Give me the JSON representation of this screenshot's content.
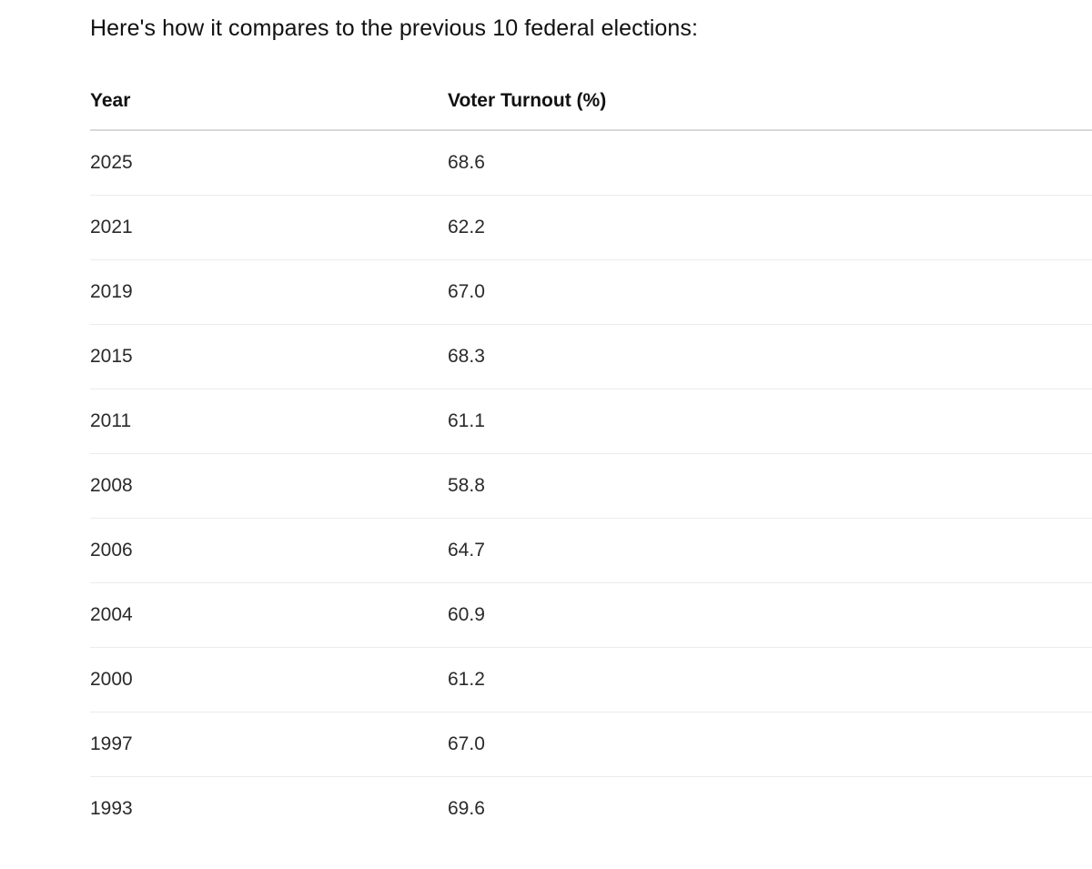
{
  "intro_text": "Here's how it compares to the previous 10 federal elections:",
  "table": {
    "headers": [
      "Year",
      "Voter Turnout (%)"
    ],
    "rows": [
      [
        "2025",
        "68.6"
      ],
      [
        "2021",
        "62.2"
      ],
      [
        "2019",
        "67.0"
      ],
      [
        "2015",
        "68.3"
      ],
      [
        "2011",
        "61.1"
      ],
      [
        "2008",
        "58.8"
      ],
      [
        "2006",
        "64.7"
      ],
      [
        "2004",
        "60.9"
      ],
      [
        "2000",
        "61.2"
      ],
      [
        "1997",
        "67.0"
      ],
      [
        "1993",
        "69.6"
      ]
    ]
  }
}
